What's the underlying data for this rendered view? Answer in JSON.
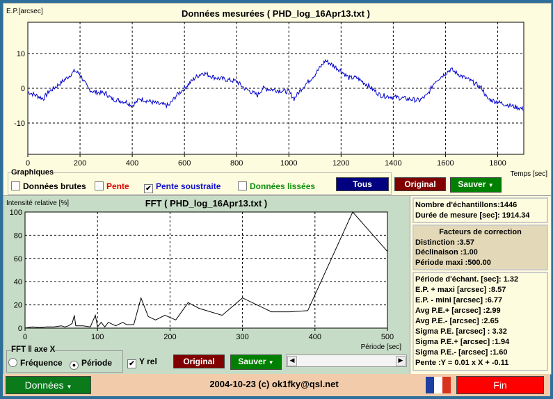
{
  "top_chart": {
    "title": "Données mesurées ( PHD_log_16Apr13.txt )",
    "ylabel": "E.P.[arcsec]",
    "xlabel": "Temps [sec]"
  },
  "graphiques": {
    "legend": "Graphiques",
    "raw": "Données brutes",
    "slope": "Pente",
    "slope_sub": "Pente soustraite",
    "smooth": "Données lissées",
    "tous": "Tous",
    "original": "Original",
    "sauver": "Sauver"
  },
  "fft_chart": {
    "title": "FFT ( PHD_log_16Apr13.txt )",
    "ylabel": "Intensité relative [%]",
    "xlabel": "Période [sec]"
  },
  "fft_controls": {
    "legend": "FFT ‖ axe X",
    "freq": "Fréquence",
    "period": "Période",
    "selected": "Période",
    "yrel": "Y rel",
    "yrel_checked": true,
    "original": "Original",
    "sauver": "Sauver"
  },
  "stats": {
    "n": "Nombre d'échantillons:1446",
    "duration": "Durée de mesure [sec]: 1914.34",
    "corr_title": "Facteurs de correction",
    "distinction": "Distinction :3.57",
    "declinaison": "Déclinaison :1.00",
    "periode_maxi": "Période maxi :500.00",
    "lines": [
      "Période d'échant. [sec]: 1.32",
      "E.P. + maxi [arcsec] :8.57",
      "E.P. - mini [arcsec] :6.77",
      "Avg P.E.+ [arcsec] :2.99",
      "Avg P.E.- [arcsec] :2.65",
      "Sigma P.E. [arcsec] : 3.32",
      "Sigma P.E.+ [arcsec] :1.94",
      "Sigma P.E.- [arcsec] :1.60",
      "Pente :Y = 0.01 x X + -0.11"
    ]
  },
  "bottom": {
    "donnees": "Données",
    "credit": "2004-10-23 (c) ok1fky@qsl.net",
    "fin": "Fin"
  },
  "colors": {
    "series": "#0000cc",
    "tous": "#000080",
    "original": "#800000",
    "sauver": "#008000",
    "fin": "#ff0000"
  },
  "chart_data": [
    {
      "type": "line",
      "title": "Données mesurées ( PHD_log_16Apr13.txt )",
      "ylabel": "E.P.[arcsec]",
      "xlabel": "Temps [sec]",
      "xlim": [
        0,
        1900
      ],
      "ylim": [
        -19,
        19
      ],
      "xticks": [
        0,
        200,
        400,
        600,
        800,
        1000,
        1200,
        1400,
        1600,
        1800
      ],
      "yticks": [
        -10,
        0,
        10
      ],
      "grid": true,
      "x": [
        0,
        30,
        60,
        80,
        100,
        150,
        180,
        200,
        230,
        250,
        300,
        320,
        380,
        400,
        430,
        500,
        540,
        570,
        600,
        640,
        670,
        720,
        800,
        830,
        880,
        900,
        950,
        1000,
        1020,
        1050,
        1100,
        1140,
        1180,
        1200,
        1230,
        1260,
        1300,
        1350,
        1400,
        1450,
        1500,
        1530,
        1560,
        1620,
        1650,
        1700,
        1740,
        1760,
        1800,
        1850,
        1900
      ],
      "y": [
        -1,
        -2,
        -3,
        -1,
        0,
        3,
        5,
        4,
        0,
        -1,
        -1.5,
        -3,
        -4,
        -5,
        -3,
        -4.5,
        -5,
        -2,
        0,
        3,
        4.5,
        3,
        2,
        0,
        -2,
        0,
        -0.5,
        -1,
        -3,
        0,
        4,
        8,
        6,
        5,
        3,
        3,
        1,
        -2,
        -2.5,
        -3,
        -3.5,
        -2,
        2,
        5.5,
        4,
        2,
        0,
        -3,
        -4,
        -5,
        -6
      ]
    },
    {
      "type": "line",
      "title": "FFT ( PHD_log_16Apr13.txt )",
      "ylabel": "Intensité relative [%]",
      "xlabel": "Période [sec]",
      "xlim": [
        0,
        500
      ],
      "ylim": [
        0,
        100
      ],
      "xticks": [
        0,
        100,
        200,
        300,
        400,
        500
      ],
      "yticks": [
        0,
        20,
        40,
        60,
        80,
        100
      ],
      "grid": true,
      "x": [
        0,
        10,
        20,
        30,
        40,
        50,
        55,
        60,
        65,
        68,
        70,
        80,
        90,
        97,
        100,
        105,
        110,
        115,
        125,
        135,
        140,
        150,
        160,
        170,
        180,
        193,
        208,
        225,
        240,
        272,
        300,
        340,
        365,
        390,
        452,
        500
      ],
      "y": [
        0,
        1,
        0.5,
        1,
        1,
        2,
        1,
        2,
        4,
        11,
        2,
        2,
        1,
        11,
        1,
        5,
        1,
        5,
        2,
        5,
        3,
        3,
        26,
        10,
        7,
        11,
        7,
        22,
        17,
        11,
        26,
        14,
        14,
        15,
        100,
        66
      ]
    }
  ]
}
